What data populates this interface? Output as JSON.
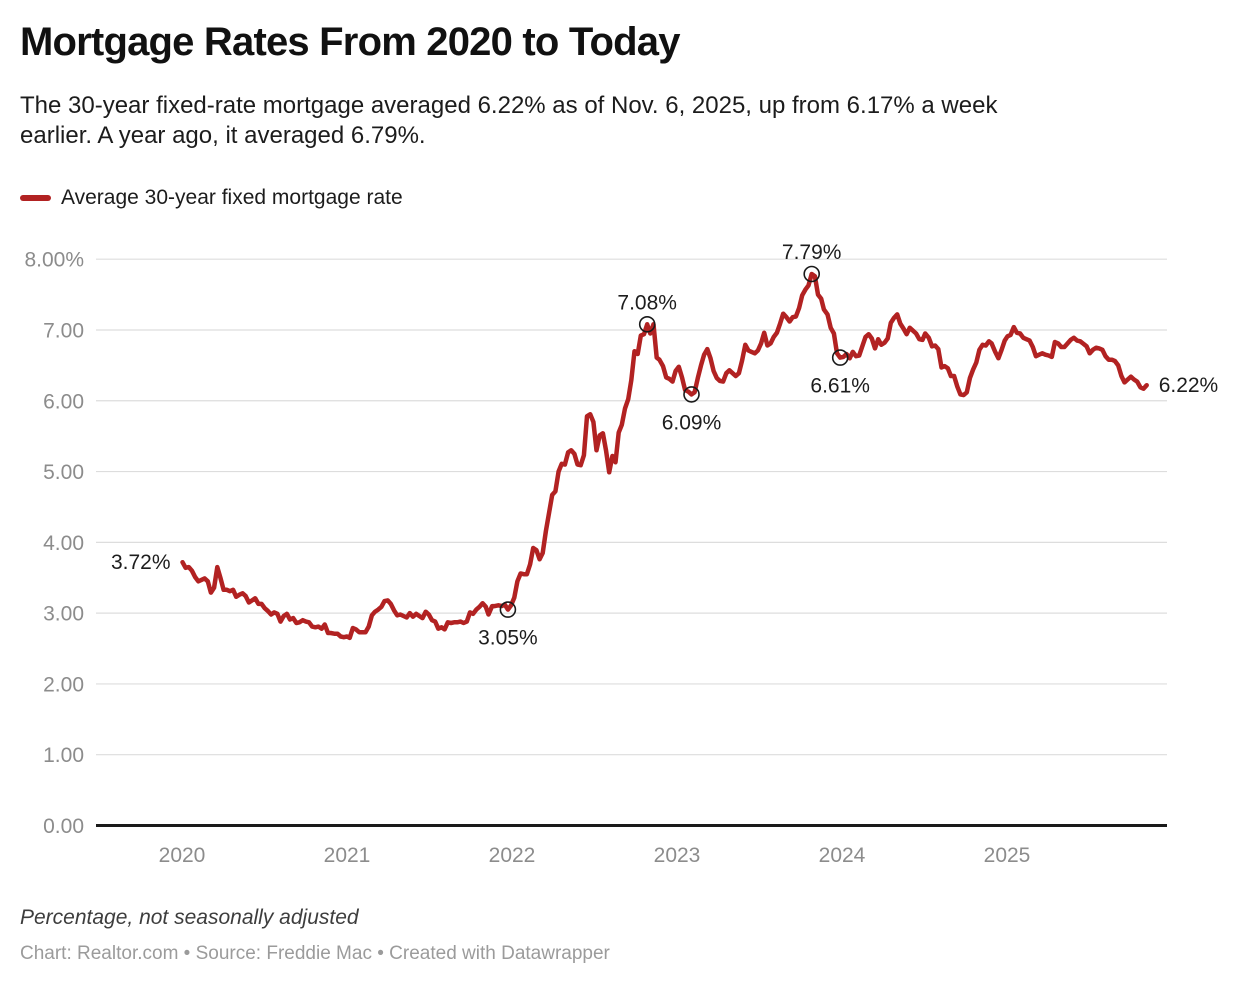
{
  "header": {
    "title": "Mortgage Rates From 2020 to Today",
    "subtitle_lines": [
      "The 30-year fixed-rate mortgage averaged 6.22% as of Nov. 6, 2025, up from 6.17% a week",
      "earlier. A year ago, it averaged 6.79%."
    ]
  },
  "legend": {
    "label": "Average 30-year fixed mortgage rate"
  },
  "footer": {
    "note": "Percentage, not seasonally adjusted",
    "credit": "Chart: Realtor.com • Source: Freddie Mac • Created with Datawrapper"
  },
  "colors": {
    "line": "#b22222",
    "grid": "#dddddd",
    "baseline": "#1a1a1a",
    "axis_label": "#8c8c8c",
    "annotation": "#1d1d1d"
  },
  "chart_data": {
    "type": "line",
    "title": "Mortgage Rates From 2020 to Today",
    "series_name": "Average 30-year fixed mortgage rate",
    "xlabel": "",
    "ylabel": "",
    "unit": "%",
    "ylim": [
      0,
      8
    ],
    "grid": true,
    "legend_position": "top-left",
    "y_ticks": [
      {
        "value": 8,
        "label": "8.00%"
      },
      {
        "value": 7,
        "label": "7.00"
      },
      {
        "value": 6,
        "label": "6.00"
      },
      {
        "value": 5,
        "label": "5.00"
      },
      {
        "value": 4,
        "label": "4.00"
      },
      {
        "value": 3,
        "label": "3.00"
      },
      {
        "value": 2,
        "label": "2.00"
      },
      {
        "value": 1,
        "label": "1.00"
      },
      {
        "value": 0,
        "label": "0.00"
      }
    ],
    "x_ticks": [
      {
        "year": 2020,
        "label": "2020"
      },
      {
        "year": 2021,
        "label": "2021"
      },
      {
        "year": 2022,
        "label": "2022"
      },
      {
        "year": 2023,
        "label": "2023"
      },
      {
        "year": 2024,
        "label": "2024"
      },
      {
        "year": 2025,
        "label": "2025"
      }
    ],
    "annotations": [
      {
        "date": "2020-01-02",
        "value": 3.72,
        "label": "3.72%",
        "placement": "left",
        "circle": false
      },
      {
        "date": "2021-12-23",
        "value": 3.05,
        "label": "3.05%",
        "placement": "below",
        "circle": true
      },
      {
        "date": "2022-10-27",
        "value": 7.08,
        "label": "7.08%",
        "placement": "above",
        "circle": true
      },
      {
        "date": "2023-02-02",
        "value": 6.09,
        "label": "6.09%",
        "placement": "below",
        "circle": true
      },
      {
        "date": "2023-10-26",
        "value": 7.79,
        "label": "7.79%",
        "placement": "above",
        "circle": true
      },
      {
        "date": "2023-12-28",
        "value": 6.61,
        "label": "6.61%",
        "placement": "below",
        "circle": true
      },
      {
        "date": "2025-11-06",
        "value": 6.22,
        "label": "6.22%",
        "placement": "right",
        "circle": false
      }
    ],
    "points": [
      [
        "2020-01-02",
        3.72
      ],
      [
        "2020-01-09",
        3.64
      ],
      [
        "2020-01-16",
        3.65
      ],
      [
        "2020-01-23",
        3.6
      ],
      [
        "2020-01-30",
        3.51
      ],
      [
        "2020-02-06",
        3.45
      ],
      [
        "2020-02-13",
        3.47
      ],
      [
        "2020-02-20",
        3.49
      ],
      [
        "2020-02-27",
        3.45
      ],
      [
        "2020-03-05",
        3.29
      ],
      [
        "2020-03-12",
        3.36
      ],
      [
        "2020-03-19",
        3.65
      ],
      [
        "2020-03-26",
        3.5
      ],
      [
        "2020-04-02",
        3.33
      ],
      [
        "2020-04-09",
        3.33
      ],
      [
        "2020-04-16",
        3.31
      ],
      [
        "2020-04-23",
        3.33
      ],
      [
        "2020-04-30",
        3.23
      ],
      [
        "2020-05-07",
        3.26
      ],
      [
        "2020-05-14",
        3.28
      ],
      [
        "2020-05-21",
        3.24
      ],
      [
        "2020-05-28",
        3.15
      ],
      [
        "2020-06-04",
        3.18
      ],
      [
        "2020-06-11",
        3.21
      ],
      [
        "2020-06-18",
        3.13
      ],
      [
        "2020-06-25",
        3.13
      ],
      [
        "2020-07-02",
        3.07
      ],
      [
        "2020-07-09",
        3.03
      ],
      [
        "2020-07-16",
        2.98
      ],
      [
        "2020-07-23",
        3.01
      ],
      [
        "2020-07-30",
        2.99
      ],
      [
        "2020-08-06",
        2.88
      ],
      [
        "2020-08-13",
        2.96
      ],
      [
        "2020-08-20",
        2.99
      ],
      [
        "2020-08-27",
        2.91
      ],
      [
        "2020-09-03",
        2.93
      ],
      [
        "2020-09-10",
        2.86
      ],
      [
        "2020-09-17",
        2.87
      ],
      [
        "2020-09-24",
        2.9
      ],
      [
        "2020-10-01",
        2.88
      ],
      [
        "2020-10-08",
        2.87
      ],
      [
        "2020-10-15",
        2.81
      ],
      [
        "2020-10-22",
        2.8
      ],
      [
        "2020-10-29",
        2.81
      ],
      [
        "2020-11-05",
        2.78
      ],
      [
        "2020-11-12",
        2.84
      ],
      [
        "2020-11-19",
        2.72
      ],
      [
        "2020-11-25",
        2.72
      ],
      [
        "2020-12-03",
        2.71
      ],
      [
        "2020-12-10",
        2.71
      ],
      [
        "2020-12-17",
        2.67
      ],
      [
        "2020-12-24",
        2.66
      ],
      [
        "2020-12-31",
        2.67
      ],
      [
        "2021-01-07",
        2.65
      ],
      [
        "2021-01-14",
        2.79
      ],
      [
        "2021-01-21",
        2.77
      ],
      [
        "2021-01-28",
        2.73
      ],
      [
        "2021-02-04",
        2.73
      ],
      [
        "2021-02-11",
        2.73
      ],
      [
        "2021-02-18",
        2.81
      ],
      [
        "2021-02-25",
        2.97
      ],
      [
        "2021-03-04",
        3.02
      ],
      [
        "2021-03-11",
        3.05
      ],
      [
        "2021-03-18",
        3.09
      ],
      [
        "2021-03-25",
        3.17
      ],
      [
        "2021-04-01",
        3.18
      ],
      [
        "2021-04-08",
        3.13
      ],
      [
        "2021-04-15",
        3.04
      ],
      [
        "2021-04-22",
        2.97
      ],
      [
        "2021-04-29",
        2.98
      ],
      [
        "2021-05-06",
        2.96
      ],
      [
        "2021-05-13",
        2.94
      ],
      [
        "2021-05-20",
        3.0
      ],
      [
        "2021-05-27",
        2.95
      ],
      [
        "2021-06-03",
        2.99
      ],
      [
        "2021-06-10",
        2.96
      ],
      [
        "2021-06-17",
        2.93
      ],
      [
        "2021-06-24",
        3.02
      ],
      [
        "2021-07-01",
        2.98
      ],
      [
        "2021-07-08",
        2.9
      ],
      [
        "2021-07-15",
        2.88
      ],
      [
        "2021-07-22",
        2.78
      ],
      [
        "2021-07-29",
        2.8
      ],
      [
        "2021-08-05",
        2.77
      ],
      [
        "2021-08-12",
        2.87
      ],
      [
        "2021-08-19",
        2.86
      ],
      [
        "2021-08-26",
        2.87
      ],
      [
        "2021-09-02",
        2.87
      ],
      [
        "2021-09-09",
        2.88
      ],
      [
        "2021-09-16",
        2.86
      ],
      [
        "2021-09-23",
        2.88
      ],
      [
        "2021-09-30",
        3.01
      ],
      [
        "2021-10-07",
        2.99
      ],
      [
        "2021-10-14",
        3.05
      ],
      [
        "2021-10-21",
        3.09
      ],
      [
        "2021-10-28",
        3.14
      ],
      [
        "2021-11-04",
        3.09
      ],
      [
        "2021-11-10",
        2.98
      ],
      [
        "2021-11-18",
        3.1
      ],
      [
        "2021-11-24",
        3.1
      ],
      [
        "2021-12-02",
        3.11
      ],
      [
        "2021-12-09",
        3.1
      ],
      [
        "2021-12-16",
        3.12
      ],
      [
        "2021-12-23",
        3.05
      ],
      [
        "2021-12-30",
        3.11
      ],
      [
        "2022-01-06",
        3.22
      ],
      [
        "2022-01-13",
        3.45
      ],
      [
        "2022-01-20",
        3.56
      ],
      [
        "2022-01-27",
        3.55
      ],
      [
        "2022-02-03",
        3.55
      ],
      [
        "2022-02-10",
        3.69
      ],
      [
        "2022-02-17",
        3.92
      ],
      [
        "2022-02-24",
        3.89
      ],
      [
        "2022-03-03",
        3.76
      ],
      [
        "2022-03-10",
        3.85
      ],
      [
        "2022-03-17",
        4.16
      ],
      [
        "2022-03-24",
        4.42
      ],
      [
        "2022-03-31",
        4.67
      ],
      [
        "2022-04-07",
        4.72
      ],
      [
        "2022-04-14",
        5.0
      ],
      [
        "2022-04-21",
        5.11
      ],
      [
        "2022-04-28",
        5.1
      ],
      [
        "2022-05-05",
        5.27
      ],
      [
        "2022-05-12",
        5.3
      ],
      [
        "2022-05-19",
        5.25
      ],
      [
        "2022-05-26",
        5.1
      ],
      [
        "2022-06-02",
        5.09
      ],
      [
        "2022-06-09",
        5.23
      ],
      [
        "2022-06-16",
        5.78
      ],
      [
        "2022-06-23",
        5.81
      ],
      [
        "2022-06-30",
        5.7
      ],
      [
        "2022-07-07",
        5.3
      ],
      [
        "2022-07-14",
        5.51
      ],
      [
        "2022-07-21",
        5.54
      ],
      [
        "2022-07-28",
        5.3
      ],
      [
        "2022-08-04",
        4.99
      ],
      [
        "2022-08-11",
        5.22
      ],
      [
        "2022-08-18",
        5.13
      ],
      [
        "2022-08-25",
        5.55
      ],
      [
        "2022-09-01",
        5.66
      ],
      [
        "2022-09-08",
        5.89
      ],
      [
        "2022-09-15",
        6.02
      ],
      [
        "2022-09-22",
        6.29
      ],
      [
        "2022-09-29",
        6.7
      ],
      [
        "2022-10-06",
        6.66
      ],
      [
        "2022-10-13",
        6.92
      ],
      [
        "2022-10-20",
        6.94
      ],
      [
        "2022-10-27",
        7.08
      ],
      [
        "2022-11-03",
        6.95
      ],
      [
        "2022-11-10",
        7.08
      ],
      [
        "2022-11-17",
        6.61
      ],
      [
        "2022-11-23",
        6.58
      ],
      [
        "2022-12-01",
        6.49
      ],
      [
        "2022-12-08",
        6.33
      ],
      [
        "2022-12-15",
        6.31
      ],
      [
        "2022-12-22",
        6.27
      ],
      [
        "2022-12-29",
        6.42
      ],
      [
        "2023-01-05",
        6.48
      ],
      [
        "2023-01-12",
        6.33
      ],
      [
        "2023-01-19",
        6.15
      ],
      [
        "2023-01-26",
        6.13
      ],
      [
        "2023-02-02",
        6.09
      ],
      [
        "2023-02-09",
        6.12
      ],
      [
        "2023-02-16",
        6.32
      ],
      [
        "2023-02-23",
        6.5
      ],
      [
        "2023-03-02",
        6.65
      ],
      [
        "2023-03-09",
        6.73
      ],
      [
        "2023-03-16",
        6.6
      ],
      [
        "2023-03-23",
        6.42
      ],
      [
        "2023-03-30",
        6.32
      ],
      [
        "2023-04-06",
        6.28
      ],
      [
        "2023-04-13",
        6.27
      ],
      [
        "2023-04-20",
        6.39
      ],
      [
        "2023-04-27",
        6.43
      ],
      [
        "2023-05-04",
        6.39
      ],
      [
        "2023-05-11",
        6.35
      ],
      [
        "2023-05-18",
        6.39
      ],
      [
        "2023-05-25",
        6.57
      ],
      [
        "2023-06-01",
        6.79
      ],
      [
        "2023-06-08",
        6.71
      ],
      [
        "2023-06-15",
        6.69
      ],
      [
        "2023-06-22",
        6.67
      ],
      [
        "2023-06-29",
        6.71
      ],
      [
        "2023-07-06",
        6.81
      ],
      [
        "2023-07-13",
        6.96
      ],
      [
        "2023-07-20",
        6.78
      ],
      [
        "2023-07-27",
        6.81
      ],
      [
        "2023-08-03",
        6.9
      ],
      [
        "2023-08-10",
        6.96
      ],
      [
        "2023-08-17",
        7.09
      ],
      [
        "2023-08-24",
        7.23
      ],
      [
        "2023-08-31",
        7.18
      ],
      [
        "2023-09-07",
        7.12
      ],
      [
        "2023-09-14",
        7.18
      ],
      [
        "2023-09-21",
        7.19
      ],
      [
        "2023-09-28",
        7.31
      ],
      [
        "2023-10-05",
        7.49
      ],
      [
        "2023-10-12",
        7.57
      ],
      [
        "2023-10-19",
        7.63
      ],
      [
        "2023-10-26",
        7.79
      ],
      [
        "2023-11-02",
        7.76
      ],
      [
        "2023-11-09",
        7.5
      ],
      [
        "2023-11-16",
        7.44
      ],
      [
        "2023-11-22",
        7.29
      ],
      [
        "2023-11-30",
        7.22
      ],
      [
        "2023-12-07",
        7.03
      ],
      [
        "2023-12-14",
        6.95
      ],
      [
        "2023-12-21",
        6.67
      ],
      [
        "2023-12-28",
        6.61
      ],
      [
        "2024-01-04",
        6.62
      ],
      [
        "2024-01-11",
        6.66
      ],
      [
        "2024-01-18",
        6.6
      ],
      [
        "2024-01-25",
        6.69
      ],
      [
        "2024-02-01",
        6.63
      ],
      [
        "2024-02-08",
        6.64
      ],
      [
        "2024-02-15",
        6.77
      ],
      [
        "2024-02-22",
        6.9
      ],
      [
        "2024-02-29",
        6.94
      ],
      [
        "2024-03-07",
        6.88
      ],
      [
        "2024-03-14",
        6.74
      ],
      [
        "2024-03-21",
        6.87
      ],
      [
        "2024-03-28",
        6.79
      ],
      [
        "2024-04-04",
        6.82
      ],
      [
        "2024-04-11",
        6.88
      ],
      [
        "2024-04-18",
        7.1
      ],
      [
        "2024-04-25",
        7.17
      ],
      [
        "2024-05-02",
        7.22
      ],
      [
        "2024-05-09",
        7.09
      ],
      [
        "2024-05-16",
        7.02
      ],
      [
        "2024-05-23",
        6.94
      ],
      [
        "2024-05-30",
        7.03
      ],
      [
        "2024-06-06",
        6.99
      ],
      [
        "2024-06-13",
        6.95
      ],
      [
        "2024-06-20",
        6.87
      ],
      [
        "2024-06-27",
        6.86
      ],
      [
        "2024-07-03",
        6.95
      ],
      [
        "2024-07-11",
        6.89
      ],
      [
        "2024-07-18",
        6.77
      ],
      [
        "2024-07-25",
        6.78
      ],
      [
        "2024-08-01",
        6.73
      ],
      [
        "2024-08-08",
        6.47
      ],
      [
        "2024-08-15",
        6.49
      ],
      [
        "2024-08-22",
        6.46
      ],
      [
        "2024-08-29",
        6.35
      ],
      [
        "2024-09-05",
        6.35
      ],
      [
        "2024-09-12",
        6.2
      ],
      [
        "2024-09-19",
        6.09
      ],
      [
        "2024-09-26",
        6.08
      ],
      [
        "2024-10-03",
        6.12
      ],
      [
        "2024-10-10",
        6.32
      ],
      [
        "2024-10-17",
        6.44
      ],
      [
        "2024-10-24",
        6.54
      ],
      [
        "2024-10-31",
        6.72
      ],
      [
        "2024-11-07",
        6.79
      ],
      [
        "2024-11-14",
        6.78
      ],
      [
        "2024-11-21",
        6.84
      ],
      [
        "2024-11-27",
        6.81
      ],
      [
        "2024-12-05",
        6.69
      ],
      [
        "2024-12-12",
        6.6
      ],
      [
        "2024-12-19",
        6.72
      ],
      [
        "2024-12-26",
        6.85
      ],
      [
        "2025-01-02",
        6.91
      ],
      [
        "2025-01-09",
        6.93
      ],
      [
        "2025-01-16",
        7.04
      ],
      [
        "2025-01-23",
        6.96
      ],
      [
        "2025-01-30",
        6.95
      ],
      [
        "2025-02-06",
        6.89
      ],
      [
        "2025-02-13",
        6.87
      ],
      [
        "2025-02-20",
        6.85
      ],
      [
        "2025-02-27",
        6.76
      ],
      [
        "2025-03-06",
        6.63
      ],
      [
        "2025-03-13",
        6.65
      ],
      [
        "2025-03-20",
        6.67
      ],
      [
        "2025-03-27",
        6.65
      ],
      [
        "2025-04-03",
        6.64
      ],
      [
        "2025-04-10",
        6.62
      ],
      [
        "2025-04-17",
        6.83
      ],
      [
        "2025-04-24",
        6.81
      ],
      [
        "2025-05-01",
        6.76
      ],
      [
        "2025-05-08",
        6.76
      ],
      [
        "2025-05-15",
        6.81
      ],
      [
        "2025-05-22",
        6.86
      ],
      [
        "2025-05-29",
        6.89
      ],
      [
        "2025-06-05",
        6.85
      ],
      [
        "2025-06-12",
        6.84
      ],
      [
        "2025-06-18",
        6.81
      ],
      [
        "2025-06-26",
        6.77
      ],
      [
        "2025-07-03",
        6.67
      ],
      [
        "2025-07-10",
        6.72
      ],
      [
        "2025-07-17",
        6.75
      ],
      [
        "2025-07-24",
        6.74
      ],
      [
        "2025-07-31",
        6.72
      ],
      [
        "2025-08-07",
        6.63
      ],
      [
        "2025-08-14",
        6.58
      ],
      [
        "2025-08-21",
        6.58
      ],
      [
        "2025-08-28",
        6.56
      ],
      [
        "2025-09-04",
        6.5
      ],
      [
        "2025-09-11",
        6.35
      ],
      [
        "2025-09-18",
        6.26
      ],
      [
        "2025-09-25",
        6.3
      ],
      [
        "2025-10-02",
        6.34
      ],
      [
        "2025-10-09",
        6.3
      ],
      [
        "2025-10-16",
        6.27
      ],
      [
        "2025-10-23",
        6.19
      ],
      [
        "2025-10-30",
        6.17
      ],
      [
        "2025-11-06",
        6.22
      ]
    ]
  }
}
